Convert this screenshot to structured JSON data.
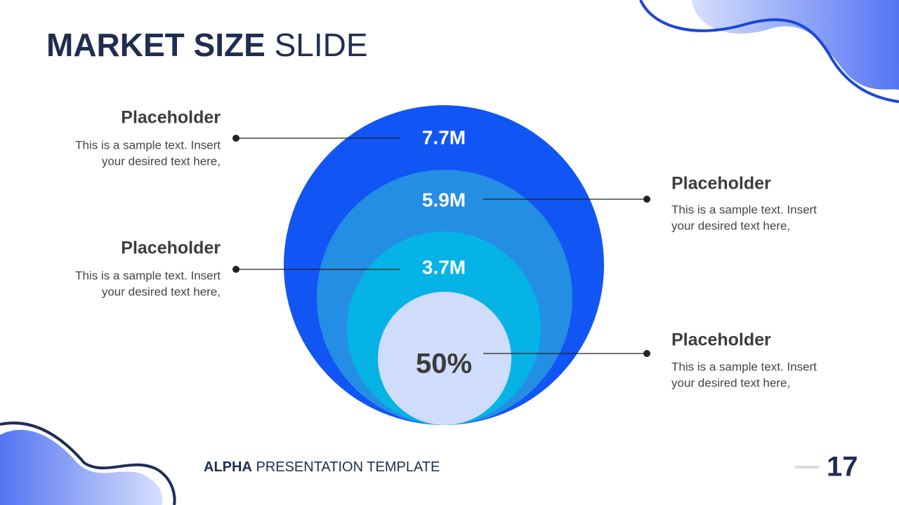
{
  "title": {
    "bold": "MARKET SIZE",
    "rest": "SLIDE"
  },
  "circles": {
    "labels": [
      "7.7M",
      "5.9M",
      "3.7M",
      "50%"
    ]
  },
  "callouts": [
    {
      "heading": "Placeholder",
      "lines": [
        "This is a sample text. Insert",
        "your desired text here,"
      ]
    },
    {
      "heading": "Placeholder",
      "lines": [
        "This is a sample text. Insert",
        "your desired text here,"
      ]
    },
    {
      "heading": "Placeholder",
      "lines": [
        "This is a sample text. Insert",
        "your desired text here,"
      ]
    },
    {
      "heading": "Placeholder",
      "lines": [
        "This is a sample text. Insert",
        "your desired text here,"
      ]
    }
  ],
  "footer": {
    "bold": "ALPHA",
    "rest": "PRESENTATION TEMPLATE",
    "page": "17"
  }
}
